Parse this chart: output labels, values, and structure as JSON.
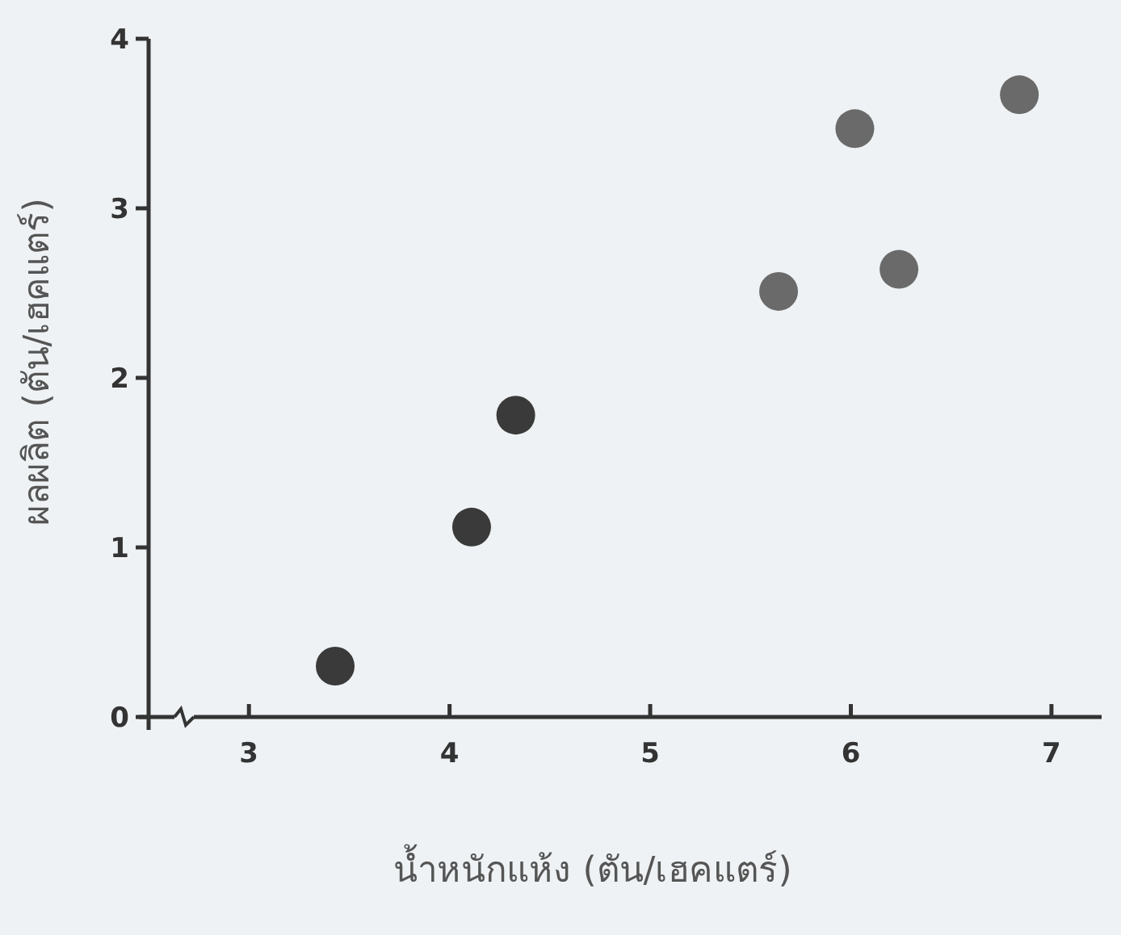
{
  "chart_data": {
    "type": "scatter",
    "xlabel": "น้ำหนักแห้ง (ตัน/เฮคแตร์)",
    "ylabel": "ผลผลิต (ตัน/เฮคแตร์)",
    "x": [
      3.43,
      4.11,
      4.33,
      5.64,
      6.02,
      6.24,
      6.84
    ],
    "values": [
      0.3,
      1.12,
      1.78,
      2.51,
      3.47,
      2.64,
      3.67
    ],
    "colors": [
      "#3a3a3a",
      "#3a3a3a",
      "#3a3a3a",
      "#6a6a6a",
      "#6a6a6a",
      "#6a6a6a",
      "#6a6a6a"
    ],
    "marker": "circle",
    "xlim": [
      2.5,
      7.25
    ],
    "xticks": [
      3,
      4,
      5,
      6,
      7
    ],
    "ylim": [
      0,
      4
    ],
    "yticks": [
      0,
      1,
      2,
      3,
      4
    ]
  }
}
